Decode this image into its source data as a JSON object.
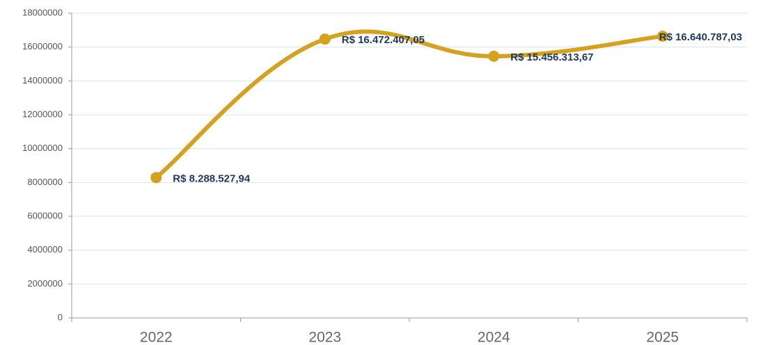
{
  "chart_data": {
    "type": "line",
    "categories": [
      "2022",
      "2023",
      "2024",
      "2025"
    ],
    "values": [
      8288527.94,
      16472407.05,
      15456313.67,
      16640787.03
    ],
    "value_labels": [
      "R$ 8.288.527,94",
      "R$ 16.472.407,05",
      "R$ 15.456.313,67",
      "R$ 16.640.787,03"
    ],
    "color": "#d4a21f",
    "ylim": [
      0,
      18000000
    ],
    "yticks": [
      0,
      2000000,
      4000000,
      6000000,
      8000000,
      10000000,
      12000000,
      14000000,
      16000000,
      18000000
    ],
    "grid": true
  }
}
